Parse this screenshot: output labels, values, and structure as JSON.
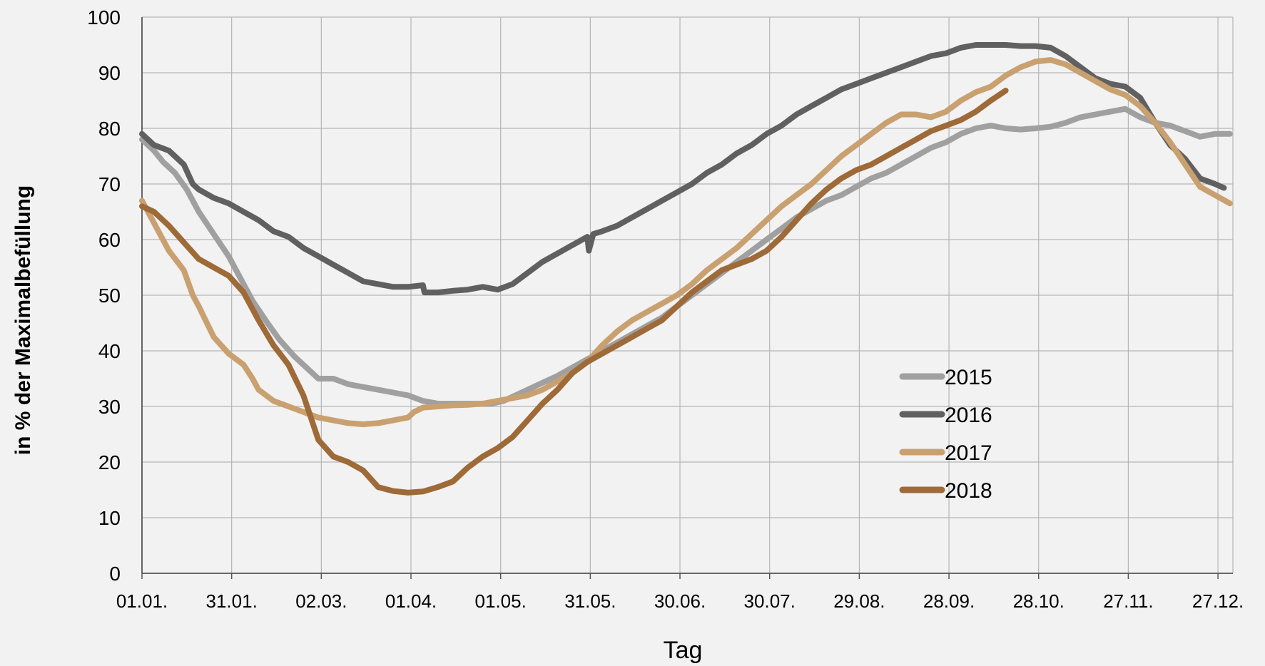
{
  "chart_data": {
    "type": "line",
    "xlabel": "Tag",
    "ylabel": "in % der Maximalbefüllung",
    "ylim": [
      0,
      100
    ],
    "yticks": [
      0,
      10,
      20,
      30,
      40,
      50,
      60,
      70,
      80,
      90,
      100
    ],
    "xlim": [
      1,
      365
    ],
    "xticks": [
      {
        "day": 1,
        "label": "01.01."
      },
      {
        "day": 31,
        "label": "31.01."
      },
      {
        "day": 61,
        "label": "02.03."
      },
      {
        "day": 91,
        "label": "01.04."
      },
      {
        "day": 121,
        "label": "01.05."
      },
      {
        "day": 151,
        "label": "31.05."
      },
      {
        "day": 181,
        "label": "30.06."
      },
      {
        "day": 211,
        "label": "30.07."
      },
      {
        "day": 241,
        "label": "29.08."
      },
      {
        "day": 271,
        "label": "28.09."
      },
      {
        "day": 301,
        "label": "28.10."
      },
      {
        "day": 331,
        "label": "27.11."
      },
      {
        "day": 361,
        "label": "27.12."
      }
    ],
    "grid": true,
    "legend_position": "lower-right",
    "series": [
      {
        "name": "2015",
        "color": "#a0a0a0",
        "points": [
          [
            1,
            78
          ],
          [
            5,
            76
          ],
          [
            8,
            74
          ],
          [
            12,
            72
          ],
          [
            16,
            69
          ],
          [
            20,
            65
          ],
          [
            25,
            61
          ],
          [
            30,
            57
          ],
          [
            34,
            53
          ],
          [
            38,
            49
          ],
          [
            43,
            45
          ],
          [
            47,
            42
          ],
          [
            52,
            39
          ],
          [
            56,
            37
          ],
          [
            60,
            35
          ],
          [
            65,
            35
          ],
          [
            70,
            34
          ],
          [
            75,
            33.5
          ],
          [
            80,
            33
          ],
          [
            85,
            32.5
          ],
          [
            90,
            32
          ],
          [
            95,
            31
          ],
          [
            100,
            30.5
          ],
          [
            106,
            30.5
          ],
          [
            112,
            30.5
          ],
          [
            118,
            30.5
          ],
          [
            122,
            31
          ],
          [
            128,
            32.5
          ],
          [
            134,
            34
          ],
          [
            140,
            35.5
          ],
          [
            145,
            37
          ],
          [
            150,
            38.5
          ],
          [
            155,
            40
          ],
          [
            160,
            41.5
          ],
          [
            165,
            43
          ],
          [
            170,
            44.5
          ],
          [
            175,
            46
          ],
          [
            180,
            48
          ],
          [
            185,
            50
          ],
          [
            190,
            52
          ],
          [
            195,
            54
          ],
          [
            200,
            56
          ],
          [
            205,
            58
          ],
          [
            210,
            60
          ],
          [
            215,
            62
          ],
          [
            220,
            64
          ],
          [
            225,
            65.5
          ],
          [
            230,
            67
          ],
          [
            235,
            68
          ],
          [
            240,
            69.5
          ],
          [
            245,
            71
          ],
          [
            250,
            72
          ],
          [
            255,
            73.5
          ],
          [
            260,
            75
          ],
          [
            265,
            76.5
          ],
          [
            270,
            77.5
          ],
          [
            275,
            79
          ],
          [
            280,
            80
          ],
          [
            285,
            80.5
          ],
          [
            290,
            80
          ],
          [
            295,
            79.8
          ],
          [
            300,
            80
          ],
          [
            305,
            80.3
          ],
          [
            310,
            81
          ],
          [
            315,
            82
          ],
          [
            320,
            82.5
          ],
          [
            325,
            83
          ],
          [
            330,
            83.5
          ],
          [
            335,
            82
          ],
          [
            340,
            81
          ],
          [
            345,
            80.5
          ],
          [
            350,
            79.5
          ],
          [
            355,
            78.5
          ],
          [
            360,
            79
          ],
          [
            365,
            79
          ]
        ]
      },
      {
        "name": "2016",
        "color": "#606060",
        "points": [
          [
            1,
            79
          ],
          [
            5,
            77
          ],
          [
            10,
            76
          ],
          [
            15,
            73.5
          ],
          [
            18,
            70
          ],
          [
            20,
            69
          ],
          [
            25,
            67.5
          ],
          [
            30,
            66.5
          ],
          [
            35,
            65
          ],
          [
            40,
            63.5
          ],
          [
            45,
            61.5
          ],
          [
            50,
            60.5
          ],
          [
            55,
            58.5
          ],
          [
            60,
            57
          ],
          [
            65,
            55.5
          ],
          [
            70,
            54
          ],
          [
            75,
            52.5
          ],
          [
            80,
            52
          ],
          [
            85,
            51.5
          ],
          [
            90,
            51.5
          ],
          [
            95,
            51.8
          ],
          [
            95.5,
            50.5
          ],
          [
            100,
            50.5
          ],
          [
            105,
            50.8
          ],
          [
            110,
            51
          ],
          [
            115,
            51.5
          ],
          [
            120,
            51
          ],
          [
            125,
            52
          ],
          [
            130,
            54
          ],
          [
            135,
            56
          ],
          [
            140,
            57.5
          ],
          [
            145,
            59
          ],
          [
            150,
            60.5
          ],
          [
            150.5,
            58
          ],
          [
            152,
            61
          ],
          [
            155,
            61.5
          ],
          [
            160,
            62.5
          ],
          [
            165,
            64
          ],
          [
            170,
            65.5
          ],
          [
            175,
            67
          ],
          [
            180,
            68.5
          ],
          [
            185,
            70
          ],
          [
            190,
            72
          ],
          [
            195,
            73.5
          ],
          [
            200,
            75.5
          ],
          [
            205,
            77
          ],
          [
            210,
            79
          ],
          [
            215,
            80.5
          ],
          [
            220,
            82.5
          ],
          [
            225,
            84
          ],
          [
            230,
            85.5
          ],
          [
            235,
            87
          ],
          [
            240,
            88
          ],
          [
            245,
            89
          ],
          [
            250,
            90
          ],
          [
            255,
            91
          ],
          [
            260,
            92
          ],
          [
            265,
            93
          ],
          [
            270,
            93.5
          ],
          [
            275,
            94.5
          ],
          [
            280,
            95
          ],
          [
            285,
            95
          ],
          [
            290,
            95
          ],
          [
            295,
            94.8
          ],
          [
            300,
            94.8
          ],
          [
            305,
            94.5
          ],
          [
            310,
            93
          ],
          [
            315,
            91
          ],
          [
            320,
            89
          ],
          [
            325,
            88
          ],
          [
            330,
            87.5
          ],
          [
            335,
            85.5
          ],
          [
            340,
            81
          ],
          [
            345,
            77
          ],
          [
            350,
            74.5
          ],
          [
            355,
            71
          ],
          [
            360,
            70
          ],
          [
            363,
            69.3
          ]
        ]
      },
      {
        "name": "2017",
        "color": "#c9a070",
        "points": [
          [
            1,
            67
          ],
          [
            5,
            63
          ],
          [
            10,
            58
          ],
          [
            15,
            54.5
          ],
          [
            18,
            50
          ],
          [
            20,
            48
          ],
          [
            25,
            42.5
          ],
          [
            30,
            39.5
          ],
          [
            35,
            37.5
          ],
          [
            38,
            35
          ],
          [
            40,
            33
          ],
          [
            45,
            31
          ],
          [
            50,
            30
          ],
          [
            55,
            29
          ],
          [
            60,
            28
          ],
          [
            65,
            27.5
          ],
          [
            70,
            27
          ],
          [
            75,
            26.8
          ],
          [
            80,
            27
          ],
          [
            85,
            27.5
          ],
          [
            90,
            28
          ],
          [
            92,
            29
          ],
          [
            95,
            29.8
          ],
          [
            100,
            30
          ],
          [
            105,
            30.2
          ],
          [
            110,
            30.3
          ],
          [
            115,
            30.5
          ],
          [
            120,
            31
          ],
          [
            125,
            31.5
          ],
          [
            130,
            32
          ],
          [
            135,
            33
          ],
          [
            140,
            34.5
          ],
          [
            145,
            36
          ],
          [
            150,
            38
          ],
          [
            155,
            41
          ],
          [
            160,
            43.5
          ],
          [
            165,
            45.5
          ],
          [
            170,
            47
          ],
          [
            175,
            48.5
          ],
          [
            180,
            50
          ],
          [
            185,
            52
          ],
          [
            190,
            54.5
          ],
          [
            195,
            56.5
          ],
          [
            200,
            58.5
          ],
          [
            205,
            61
          ],
          [
            210,
            63.5
          ],
          [
            215,
            66
          ],
          [
            220,
            68
          ],
          [
            225,
            70
          ],
          [
            230,
            72.5
          ],
          [
            235,
            75
          ],
          [
            240,
            77
          ],
          [
            245,
            79
          ],
          [
            250,
            81
          ],
          [
            255,
            82.5
          ],
          [
            260,
            82.5
          ],
          [
            265,
            82
          ],
          [
            270,
            83
          ],
          [
            275,
            85
          ],
          [
            280,
            86.5
          ],
          [
            285,
            87.5
          ],
          [
            290,
            89.5
          ],
          [
            295,
            91
          ],
          [
            300,
            92
          ],
          [
            305,
            92.3
          ],
          [
            310,
            91.5
          ],
          [
            315,
            90
          ],
          [
            320,
            88.5
          ],
          [
            325,
            87
          ],
          [
            330,
            86
          ],
          [
            335,
            84
          ],
          [
            340,
            81
          ],
          [
            345,
            77.5
          ],
          [
            350,
            73.5
          ],
          [
            355,
            69.5
          ],
          [
            360,
            68
          ],
          [
            365,
            66.5
          ]
        ]
      },
      {
        "name": "2018",
        "color": "#9e6a38",
        "points": [
          [
            1,
            66
          ],
          [
            5,
            65
          ],
          [
            10,
            62.5
          ],
          [
            15,
            59.5
          ],
          [
            20,
            56.5
          ],
          [
            25,
            55
          ],
          [
            30,
            53.5
          ],
          [
            35,
            50.5
          ],
          [
            40,
            45.5
          ],
          [
            45,
            41
          ],
          [
            50,
            37.5
          ],
          [
            55,
            32
          ],
          [
            60,
            24
          ],
          [
            65,
            21
          ],
          [
            70,
            20
          ],
          [
            75,
            18.5
          ],
          [
            80,
            15.5
          ],
          [
            85,
            14.8
          ],
          [
            90,
            14.5
          ],
          [
            95,
            14.7
          ],
          [
            100,
            15.5
          ],
          [
            105,
            16.5
          ],
          [
            110,
            19
          ],
          [
            115,
            21
          ],
          [
            120,
            22.5
          ],
          [
            125,
            24.5
          ],
          [
            130,
            27.5
          ],
          [
            135,
            30.5
          ],
          [
            140,
            33
          ],
          [
            145,
            36
          ],
          [
            150,
            38
          ],
          [
            155,
            39.5
          ],
          [
            160,
            41
          ],
          [
            165,
            42.5
          ],
          [
            170,
            44
          ],
          [
            175,
            45.5
          ],
          [
            180,
            48
          ],
          [
            185,
            50.5
          ],
          [
            190,
            52.5
          ],
          [
            195,
            54.5
          ],
          [
            200,
            55.5
          ],
          [
            205,
            56.5
          ],
          [
            210,
            58
          ],
          [
            215,
            60.5
          ],
          [
            220,
            63.5
          ],
          [
            225,
            66.5
          ],
          [
            230,
            69
          ],
          [
            235,
            71
          ],
          [
            240,
            72.5
          ],
          [
            245,
            73.5
          ],
          [
            250,
            75
          ],
          [
            255,
            76.5
          ],
          [
            260,
            78
          ],
          [
            265,
            79.5
          ],
          [
            270,
            80.5
          ],
          [
            275,
            81.5
          ],
          [
            280,
            83
          ],
          [
            285,
            85
          ],
          [
            290,
            86.8
          ]
        ]
      }
    ]
  }
}
